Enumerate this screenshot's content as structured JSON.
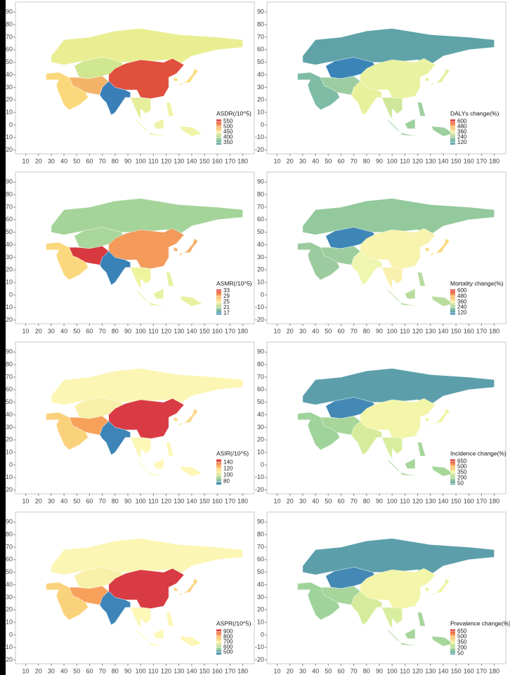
{
  "axes": {
    "xlim": [
      2,
      189
    ],
    "ylim": [
      -23,
      98
    ],
    "xticks": [
      10,
      20,
      30,
      40,
      50,
      60,
      70,
      80,
      90,
      100,
      110,
      120,
      130,
      140,
      150,
      160,
      170,
      180
    ],
    "yticks": [
      -20,
      -10,
      0,
      10,
      20,
      30,
      40,
      50,
      60,
      70,
      80,
      90
    ]
  },
  "panels": [
    {
      "legend": {
        "title": "ASDR(/10^5)",
        "ticks": [
          550,
          500,
          450,
          400,
          350
        ],
        "lim": [
          330,
          570
        ],
        "colors": [
          "#d7383e",
          "#f8a65c",
          "#fef3a6",
          "#a7d69c",
          "#5aa0aa"
        ]
      },
      "fills": [
        "#e9ee92",
        "#cfe78f",
        "#e0503d",
        "#3a7fb8",
        "#f3b46a",
        "#fbd87c",
        "#e6ee9b",
        "#eff3a7",
        "#f9df7e"
      ]
    },
    {
      "legend": {
        "title": "DALYs change(%)",
        "ticks": [
          600,
          480,
          360,
          240,
          120
        ],
        "lim": [
          70,
          650
        ],
        "colors": [
          "#d7303a",
          "#fdb063",
          "#f6f5b0",
          "#8fc6a3",
          "#5a9eab"
        ]
      },
      "fills": [
        "#5fa3a8",
        "#3a84b8",
        "#e8f2a0",
        "#e7f19c",
        "#9ccca2",
        "#7fbca5",
        "#cfe79b",
        "#9fd0a0",
        "#e6f0a2"
      ]
    },
    {
      "legend": {
        "title": "ASMR(/10^5)",
        "ticks": [
          33,
          29,
          25,
          21,
          17
        ],
        "lim": [
          16,
          34
        ],
        "colors": [
          "#d7383e",
          "#fdb063",
          "#fef3a6",
          "#a5d49a",
          "#3982b8"
        ]
      },
      "fills": [
        "#a5d49a",
        "#a9d69b",
        "#f49a5a",
        "#3982b8",
        "#d7393f",
        "#fbd87e",
        "#eef49e",
        "#e8f1a0",
        "#f3b06a"
      ]
    },
    {
      "legend": {
        "title": "Mortality change(%)",
        "ticks": [
          600,
          480,
          360,
          240,
          120
        ],
        "lim": [
          80,
          630
        ],
        "colors": [
          "#d7303a",
          "#fdb063",
          "#f8f4b0",
          "#93c99c",
          "#3982b8"
        ]
      },
      "fills": [
        "#93c99c",
        "#3e86b6",
        "#f8f4b0",
        "#eef6b0",
        "#9dcd9e",
        "#9ccb9f",
        "#f8f0ac",
        "#b8dc9c",
        "#fbd97f"
      ]
    },
    {
      "legend": {
        "title": "ASIR(/10^5)",
        "ticks": [
          140,
          120,
          100,
          80
        ],
        "lim": [
          70,
          150
        ],
        "colors": [
          "#d7383e",
          "#fdb063",
          "#fef3a6",
          "#a5d49a",
          "#3d85b8"
        ]
      },
      "fills": [
        "#fbf6b4",
        "#f8f0a8",
        "#d93b44",
        "#3d85b8",
        "#f7a05a",
        "#fbd27c",
        "#fdf7b8",
        "#fdf7b8",
        "#fad88a"
      ]
    },
    {
      "legend": {
        "title": "Incidence change(%)",
        "ticks": [
          650,
          500,
          350,
          200,
          50
        ],
        "lim": [
          20,
          700
        ],
        "colors": [
          "#d7303a",
          "#fdb063",
          "#f3f5a8",
          "#a6d69a",
          "#5c9fab"
        ]
      },
      "fills": [
        "#5c9fab",
        "#4489b5",
        "#f3f5a8",
        "#d6ec9c",
        "#a7d59a",
        "#9fd39b",
        "#d8ee9e",
        "#a6d69a",
        "#eef4a4"
      ]
    },
    {
      "legend": {
        "title": "ASPR(/10^5)",
        "ticks": [
          900,
          800,
          700,
          600,
          500
        ],
        "lim": [
          450,
          950
        ],
        "colors": [
          "#d7383e",
          "#fdb063",
          "#fef3a6",
          "#a5d49a",
          "#3d85b8"
        ]
      },
      "fills": [
        "#fbf6b4",
        "#f8f0a8",
        "#d93b44",
        "#3d85b8",
        "#f7a05a",
        "#fbd27c",
        "#fdf7b8",
        "#fdf7b8",
        "#fad88a"
      ]
    },
    {
      "legend": {
        "title": "Prevalence change(%)",
        "ticks": [
          650,
          500,
          350,
          200,
          50
        ],
        "lim": [
          20,
          700
        ],
        "colors": [
          "#d7303a",
          "#fdb063",
          "#f3f5a8",
          "#a6d69a",
          "#5c9fab"
        ]
      },
      "fills": [
        "#5c9fab",
        "#4489b5",
        "#f3f5a8",
        "#d6ec9c",
        "#a7d59a",
        "#9fd39b",
        "#d8ee9e",
        "#a6d69a",
        "#eef4a4"
      ]
    }
  ]
}
